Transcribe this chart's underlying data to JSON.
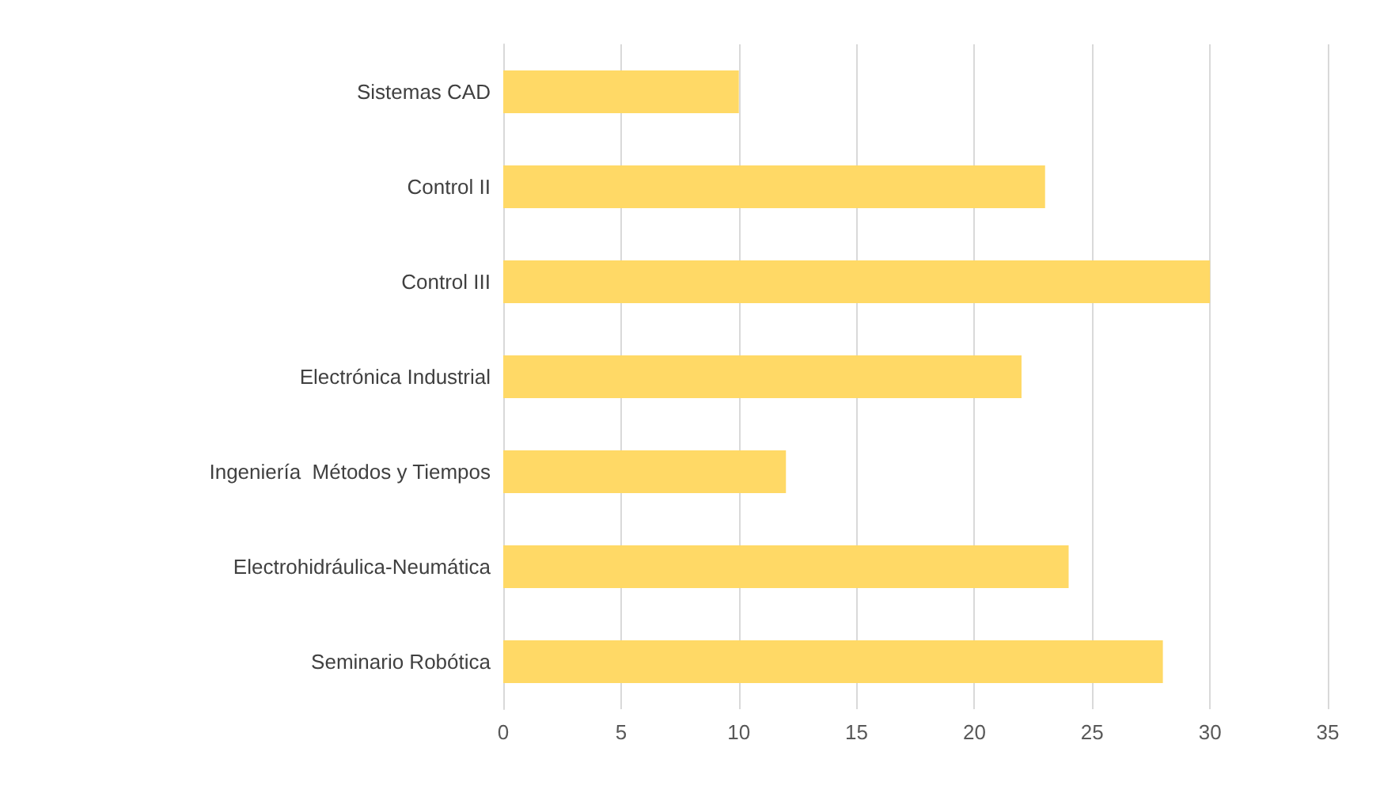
{
  "chart_data": {
    "type": "bar",
    "orientation": "horizontal",
    "categories": [
      "Sistemas CAD",
      "Control II",
      "Control III",
      "Electrónica Industrial",
      "Ingeniería  Métodos y Tiempos",
      "Electrohidráulica-Neumática",
      "Seminario Robótica"
    ],
    "values": [
      10,
      23,
      30,
      22,
      12,
      24,
      28
    ],
    "color": "#ffd966",
    "xlim": [
      0,
      35
    ],
    "xticks": [
      0,
      5,
      10,
      15,
      20,
      25,
      30,
      35
    ],
    "grid": "x"
  }
}
